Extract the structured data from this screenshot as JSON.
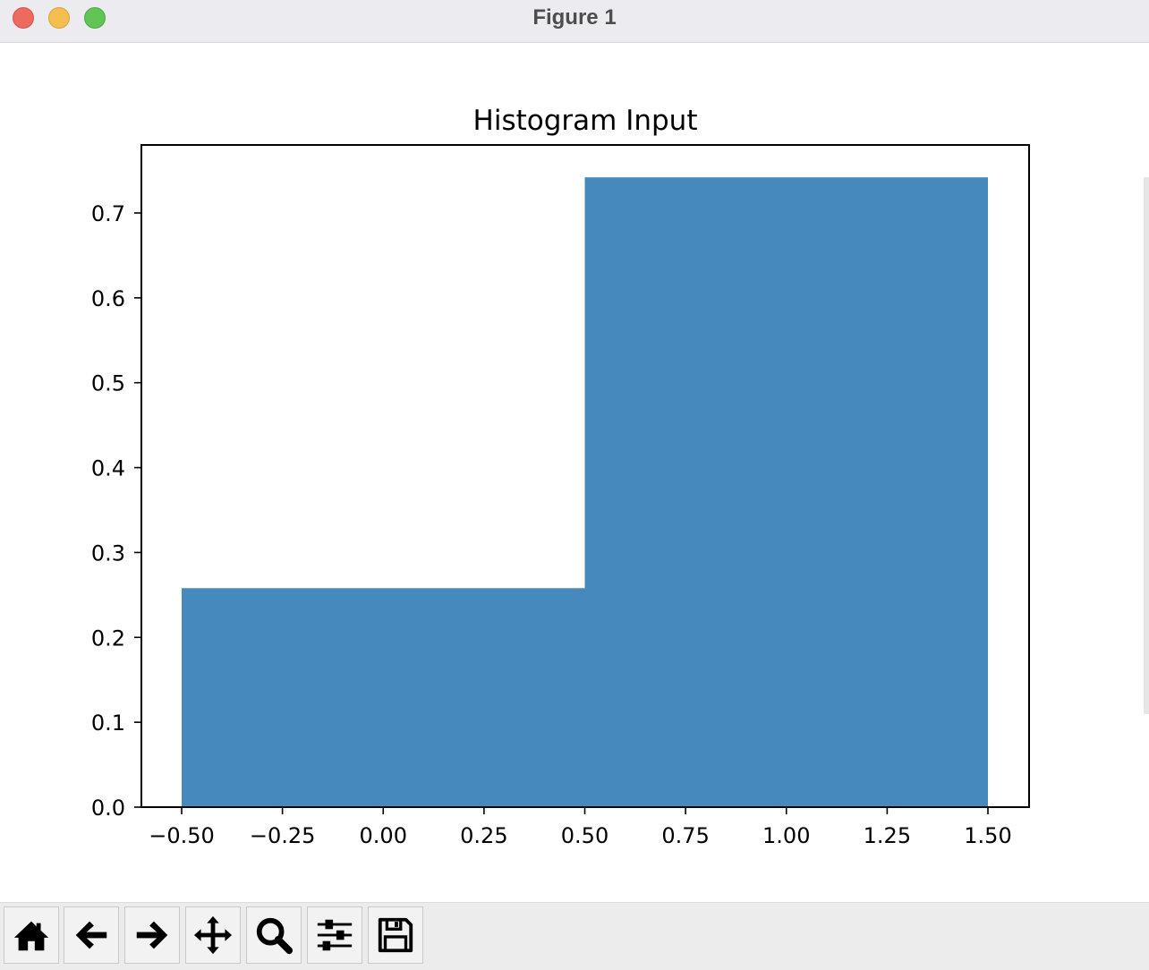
{
  "window": {
    "title": "Figure 1"
  },
  "toolbar": {
    "buttons": [
      {
        "icon": "home-icon"
      },
      {
        "icon": "back-arrow-icon"
      },
      {
        "icon": "forward-arrow-icon"
      },
      {
        "icon": "pan-move-icon"
      },
      {
        "icon": "zoom-magnifier-icon"
      },
      {
        "icon": "configure-subplots-icon"
      },
      {
        "icon": "save-floppy-icon"
      }
    ]
  },
  "chart_data": {
    "type": "bar",
    "title": "Histogram Input",
    "xlabel": "",
    "ylabel": "",
    "bins": [
      {
        "x0": -0.5,
        "x1": 0.5,
        "value": 0.258
      },
      {
        "x0": 0.5,
        "x1": 1.5,
        "value": 0.742
      }
    ],
    "xlim": [
      -0.6,
      1.6
    ],
    "ylim": [
      0,
      0.78
    ],
    "xticks": [
      -0.5,
      -0.25,
      0.0,
      0.25,
      0.5,
      0.75,
      1.0,
      1.25,
      1.5
    ],
    "xtick_labels": [
      "−0.50",
      "−0.25",
      "0.00",
      "0.25",
      "0.50",
      "0.75",
      "1.00",
      "1.25",
      "1.50"
    ],
    "yticks": [
      0.0,
      0.1,
      0.2,
      0.3,
      0.4,
      0.5,
      0.6,
      0.7
    ],
    "ytick_labels": [
      "0.0",
      "0.1",
      "0.2",
      "0.3",
      "0.4",
      "0.5",
      "0.6",
      "0.7"
    ],
    "bar_color": "#4689bc",
    "grid": false,
    "legend": "none"
  }
}
